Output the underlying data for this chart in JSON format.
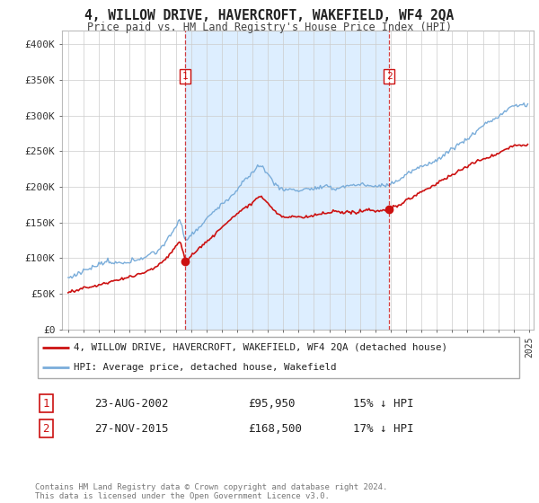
{
  "title": "4, WILLOW DRIVE, HAVERCROFT, WAKEFIELD, WF4 2QA",
  "subtitle": "Price paid vs. HM Land Registry's House Price Index (HPI)",
  "ylim": [
    0,
    420000
  ],
  "yticks": [
    0,
    50000,
    100000,
    150000,
    200000,
    250000,
    300000,
    350000,
    400000
  ],
  "xlim_start": 1994.6,
  "xlim_end": 2025.3,
  "sale1_date": 2002.63,
  "sale1_price": 95950,
  "sale2_date": 2015.9,
  "sale2_price": 168500,
  "legend_line1": "4, WILLOW DRIVE, HAVERCROFT, WAKEFIELD, WF4 2QA (detached house)",
  "legend_line2": "HPI: Average price, detached house, Wakefield",
  "table_row1": [
    "1",
    "23-AUG-2002",
    "£95,950",
    "15% ↓ HPI"
  ],
  "table_row2": [
    "2",
    "27-NOV-2015",
    "£168,500",
    "17% ↓ HPI"
  ],
  "footer": "Contains HM Land Registry data © Crown copyright and database right 2024.\nThis data is licensed under the Open Government Licence v3.0.",
  "hpi_color": "#7aadda",
  "price_color": "#cc1111",
  "vline_color": "#cc1111",
  "shade_color": "#ddeeff",
  "background_color": "#ffffff",
  "grid_color": "#cccccc"
}
